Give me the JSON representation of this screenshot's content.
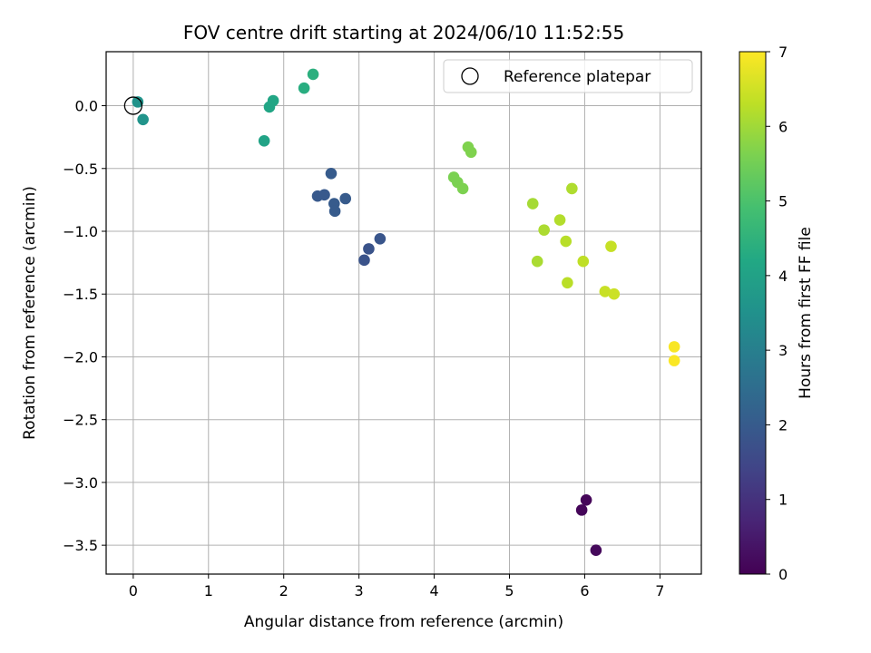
{
  "chart_data": {
    "type": "scatter",
    "title": "FOV centre drift starting at 2024/06/10 11:52:55",
    "xlabel": "Angular distance from reference (arcmin)",
    "ylabel": "Rotation from reference (arcmin)",
    "xlim": [
      -0.36,
      7.55
    ],
    "ylim": [
      -3.73,
      0.43
    ],
    "x_ticks": [
      0,
      1,
      2,
      3,
      4,
      5,
      6,
      7
    ],
    "y_ticks": [
      0.0,
      -0.5,
      -1.0,
      -1.5,
      -2.0,
      -2.5,
      -3.0,
      -3.5
    ],
    "y_tick_labels": [
      "0.0",
      "−0.5",
      "−1.0",
      "−1.5",
      "−2.0",
      "−2.5",
      "−3.0",
      "−3.5"
    ],
    "grid": true,
    "legend": {
      "placement": "top-right",
      "entries": [
        "Reference platepar"
      ]
    },
    "reference_point": {
      "x": 0.0,
      "y": 0.0,
      "label": "Reference platepar"
    },
    "colorbar": {
      "label": "Hours from first FF file",
      "range": [
        0,
        7
      ],
      "ticks": [
        0,
        1,
        2,
        3,
        4,
        5,
        6,
        7
      ],
      "colormap": "viridis"
    },
    "points": [
      {
        "x": 5.96,
        "y": -3.22,
        "hours": 0.1
      },
      {
        "x": 6.02,
        "y": -3.14,
        "hours": 0.1
      },
      {
        "x": 6.15,
        "y": -3.54,
        "hours": 0.15
      },
      {
        "x": 3.07,
        "y": -1.23,
        "hours": 1.8
      },
      {
        "x": 3.13,
        "y": -1.14,
        "hours": 1.8
      },
      {
        "x": 3.28,
        "y": -1.06,
        "hours": 1.85
      },
      {
        "x": 2.45,
        "y": -0.72,
        "hours": 1.95
      },
      {
        "x": 2.54,
        "y": -0.71,
        "hours": 1.95
      },
      {
        "x": 2.63,
        "y": -0.54,
        "hours": 2.0
      },
      {
        "x": 2.67,
        "y": -0.78,
        "hours": 2.0
      },
      {
        "x": 2.68,
        "y": -0.84,
        "hours": 2.0
      },
      {
        "x": 2.82,
        "y": -0.74,
        "hours": 2.0
      },
      {
        "x": 0.06,
        "y": 0.03,
        "hours": 3.55
      },
      {
        "x": 0.13,
        "y": -0.11,
        "hours": 3.6
      },
      {
        "x": 1.74,
        "y": -0.28,
        "hours": 4.05
      },
      {
        "x": 1.81,
        "y": -0.01,
        "hours": 4.1
      },
      {
        "x": 1.86,
        "y": 0.04,
        "hours": 4.15
      },
      {
        "x": 2.27,
        "y": 0.14,
        "hours": 4.35
      },
      {
        "x": 2.39,
        "y": 0.25,
        "hours": 4.4
      },
      {
        "x": 4.26,
        "y": -0.57,
        "hours": 5.6
      },
      {
        "x": 4.31,
        "y": -0.61,
        "hours": 5.6
      },
      {
        "x": 4.38,
        "y": -0.66,
        "hours": 5.62
      },
      {
        "x": 4.45,
        "y": -0.33,
        "hours": 5.65
      },
      {
        "x": 4.49,
        "y": -0.37,
        "hours": 5.65
      },
      {
        "x": 5.31,
        "y": -0.78,
        "hours": 6.05
      },
      {
        "x": 5.37,
        "y": -1.24,
        "hours": 6.1
      },
      {
        "x": 5.46,
        "y": -0.99,
        "hours": 6.12
      },
      {
        "x": 5.67,
        "y": -0.91,
        "hours": 6.2
      },
      {
        "x": 5.75,
        "y": -1.08,
        "hours": 6.25
      },
      {
        "x": 5.77,
        "y": -1.41,
        "hours": 6.27
      },
      {
        "x": 5.83,
        "y": -0.66,
        "hours": 6.15
      },
      {
        "x": 5.98,
        "y": -1.24,
        "hours": 6.32
      },
      {
        "x": 6.27,
        "y": -1.48,
        "hours": 6.42
      },
      {
        "x": 6.35,
        "y": -1.12,
        "hours": 6.4
      },
      {
        "x": 6.39,
        "y": -1.5,
        "hours": 6.45
      },
      {
        "x": 7.19,
        "y": -1.92,
        "hours": 6.95
      },
      {
        "x": 7.19,
        "y": -2.03,
        "hours": 6.97
      }
    ]
  }
}
